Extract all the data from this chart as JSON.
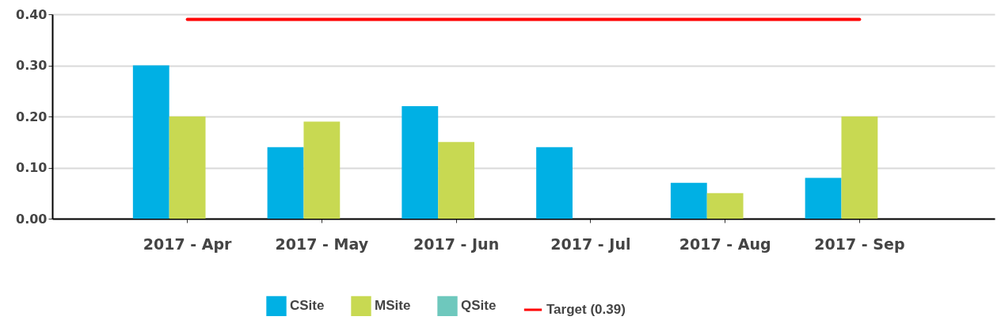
{
  "chart_data": {
    "type": "bar",
    "categories": [
      "2017 - Apr",
      "2017 - May",
      "2017 - Jun",
      "2017 - Jul",
      "2017 - Aug",
      "2017 - Sep"
    ],
    "series": [
      {
        "name": "CSite",
        "color": "#00b0e4",
        "values": [
          0.3,
          0.14,
          0.22,
          0.14,
          0.07,
          0.08
        ]
      },
      {
        "name": "MSite",
        "color": "#c8d952",
        "values": [
          0.2,
          0.19,
          0.15,
          null,
          0.05,
          0.2
        ]
      },
      {
        "name": "QSite",
        "color": "#6ec8bd",
        "values": [
          null,
          null,
          null,
          null,
          null,
          null
        ]
      }
    ],
    "ref_lines": [
      {
        "axis": "y",
        "value": 0.39,
        "label": "Target (0.39)",
        "color": "#ff0000",
        "line_style": "solid"
      }
    ],
    "ylim": [
      0,
      0.4
    ],
    "yticks": [
      {
        "value": 0,
        "label": "0.00"
      },
      {
        "value": 0.1,
        "label": "0.10"
      },
      {
        "value": 0.2,
        "label": "0.20"
      },
      {
        "value": 0.3,
        "label": "0.30"
      },
      {
        "value": 0.4,
        "label": "0.40"
      }
    ],
    "grid": "y",
    "legend": "bottom"
  }
}
